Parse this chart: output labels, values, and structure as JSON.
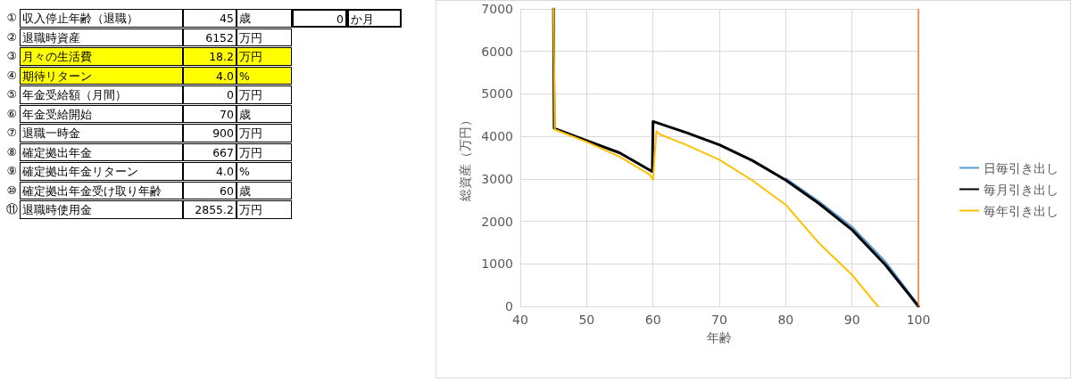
{
  "chart_data": [
    {
      "type": "other",
      "annotations": [
        "①収入停止年齢（退職）",
        "45",
        "歳",
        "0",
        "か月",
        "②退職時資産",
        "6152",
        "万円",
        "③月々の生活費",
        "18.2",
        "万円",
        "④期待リターン",
        "4.0",
        "%",
        "⑤年金受給額（月間）",
        "0",
        "万円",
        "⑥年金受給開始",
        "70",
        "歳",
        "⑦退職一時金",
        "900",
        "万円",
        "⑧確定拠出年金",
        "667",
        "万円",
        "⑨確定拠出年金リターン",
        "4.0",
        "%",
        "⑩確定拠出年金受け取り年齢",
        "60",
        "歳",
        "⑪退職時使用金",
        "2855.2",
        "万円"
      ]
    },
    {
      "type": "line",
      "xlabel": "年齢",
      "ylabel": "総資産（万円）",
      "xlim": [
        40,
        100
      ],
      "xticks": [
        40,
        50,
        60,
        70,
        80,
        90,
        100
      ],
      "ylim": [
        0,
        7000
      ],
      "yticks": [
        0,
        1000,
        2000,
        3000,
        4000,
        5000,
        6000,
        7000
      ],
      "grid": true,
      "legend": "right",
      "marker": "none",
      "ref_lines": [
        {
          "axis": "x",
          "value": 100,
          "color": "#ed7d31"
        }
      ],
      "series": [
        {
          "name": "日毎引き出し",
          "color": "#5b9bd5",
          "x": [
            80,
            85,
            90,
            95,
            100
          ],
          "values": [
            3010,
            2470,
            1870,
            1060,
            30
          ]
        },
        {
          "name": "毎月引き出し",
          "color": "#000000",
          "x": [
            45,
            45.1,
            50,
            55,
            59.9,
            60,
            65,
            70,
            75,
            80,
            85,
            90,
            95,
            100
          ],
          "values": [
            7000,
            4190,
            3900,
            3610,
            3170,
            4350,
            4090,
            3800,
            3430,
            2970,
            2420,
            1800,
            980,
            0
          ]
        },
        {
          "name": "毎年引き出し",
          "color": "#ffc000",
          "x": [
            45,
            45.2,
            50,
            55,
            59.5,
            60,
            60.5,
            61,
            65,
            70,
            75,
            80,
            85,
            90,
            93.9
          ],
          "values": [
            7000,
            4160,
            3870,
            3520,
            3100,
            2980,
            4120,
            4050,
            3800,
            3450,
            2960,
            2390,
            1490,
            740,
            0
          ]
        }
      ]
    }
  ]
}
